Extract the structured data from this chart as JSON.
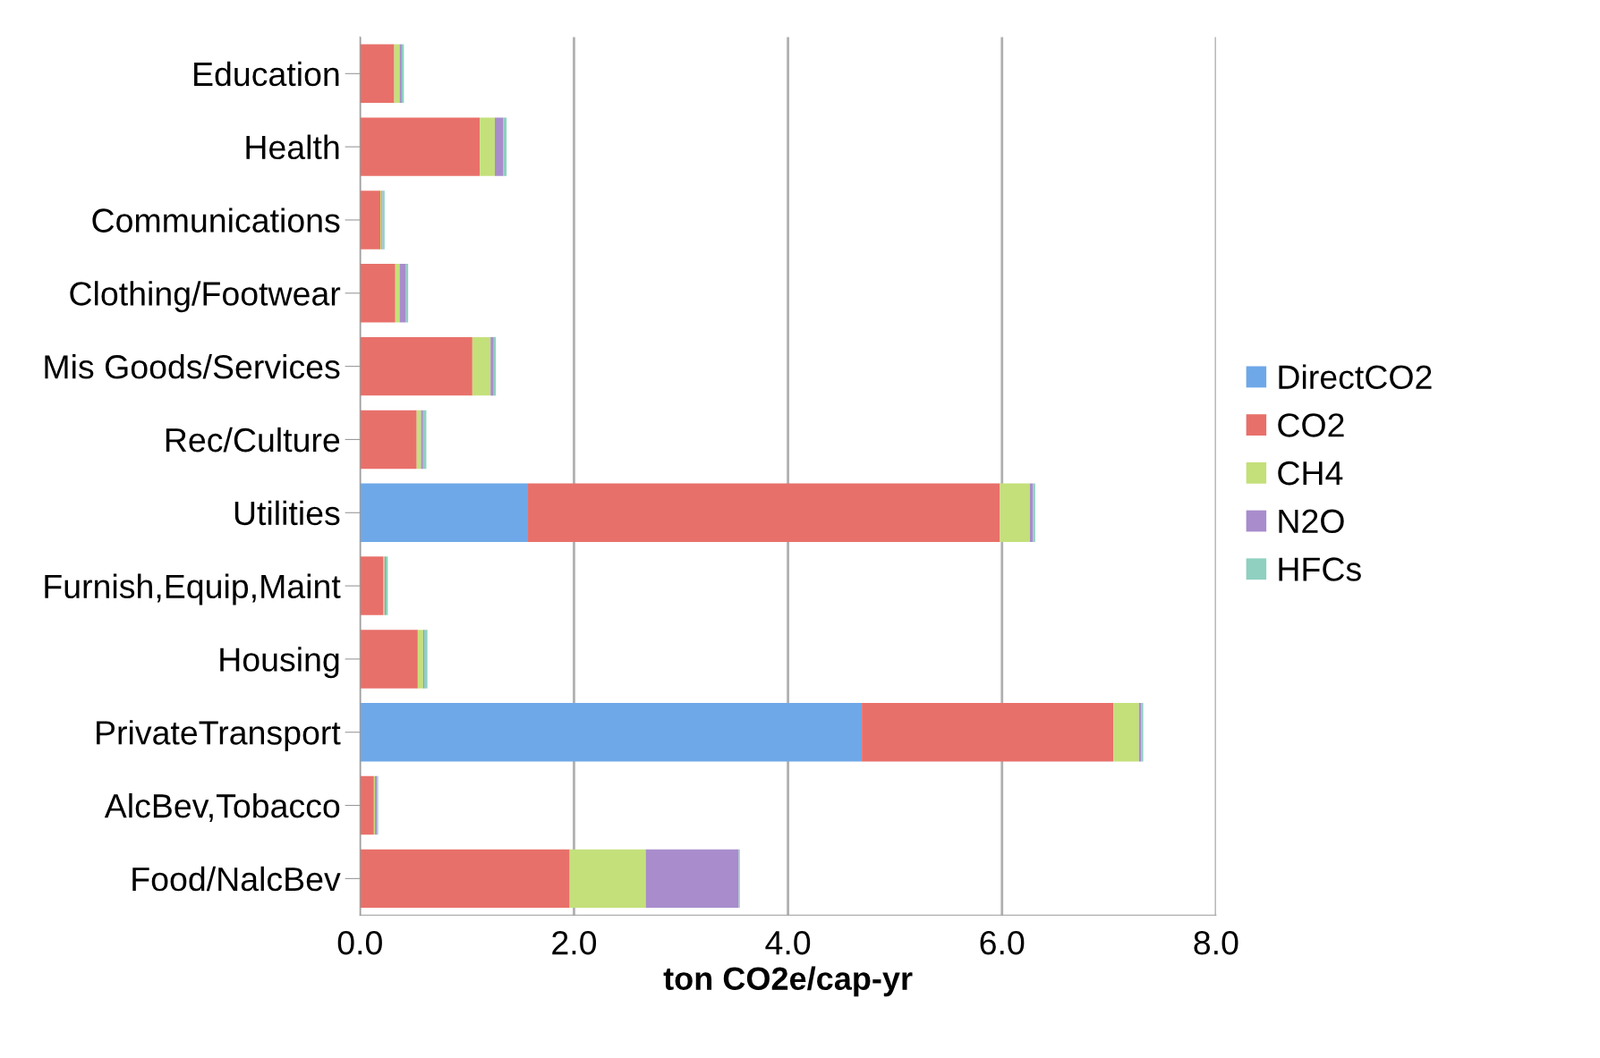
{
  "chart_data": {
    "type": "bar",
    "orientation": "horizontal",
    "stacked": true,
    "categories": [
      "Education",
      "Health",
      "Communications",
      "Clothing/Footwear",
      "Mis Goods/Services",
      "Rec/Culture",
      "Utilities",
      "Furnish,Equip,Maint",
      "Housing",
      "PrivateTransport",
      "AlcBev,Tobacco",
      "Food/NalcBev"
    ],
    "series": [
      {
        "name": "DirectCO2",
        "color": "#6fa8e8",
        "values": [
          0,
          0,
          0,
          0,
          0,
          0,
          1.57,
          0,
          0,
          4.69,
          0,
          0
        ]
      },
      {
        "name": "CO2",
        "color": "#e8706a",
        "values": [
          0.32,
          1.12,
          0.19,
          0.33,
          1.05,
          0.53,
          4.41,
          0.22,
          0.54,
          2.35,
          0.13,
          1.96
        ]
      },
      {
        "name": "CH4",
        "color": "#c4e07a",
        "values": [
          0.05,
          0.14,
          0.01,
          0.04,
          0.17,
          0.04,
          0.28,
          0.01,
          0.05,
          0.24,
          0.01,
          0.71
        ]
      },
      {
        "name": "N2O",
        "color": "#a88ccc",
        "values": [
          0.02,
          0.08,
          0.01,
          0.06,
          0.03,
          0.02,
          0.03,
          0.01,
          0.01,
          0.02,
          0.02,
          0.87
        ]
      },
      {
        "name": "HFCs",
        "color": "#8fd0c0",
        "values": [
          0.02,
          0.03,
          0.02,
          0.02,
          0.02,
          0.03,
          0.02,
          0.02,
          0.03,
          0.02,
          0.01,
          0.01
        ]
      }
    ],
    "xlabel": "ton CO2e/cap-yr",
    "xlim": [
      0,
      8
    ],
    "xticks": [
      {
        "value": 0,
        "label": "0.0"
      },
      {
        "value": 2,
        "label": "2.0"
      },
      {
        "value": 4,
        "label": "4.0"
      },
      {
        "value": 6,
        "label": "6.0"
      },
      {
        "value": 8,
        "label": "8.0"
      }
    ],
    "grid": "x",
    "legend": "right"
  }
}
